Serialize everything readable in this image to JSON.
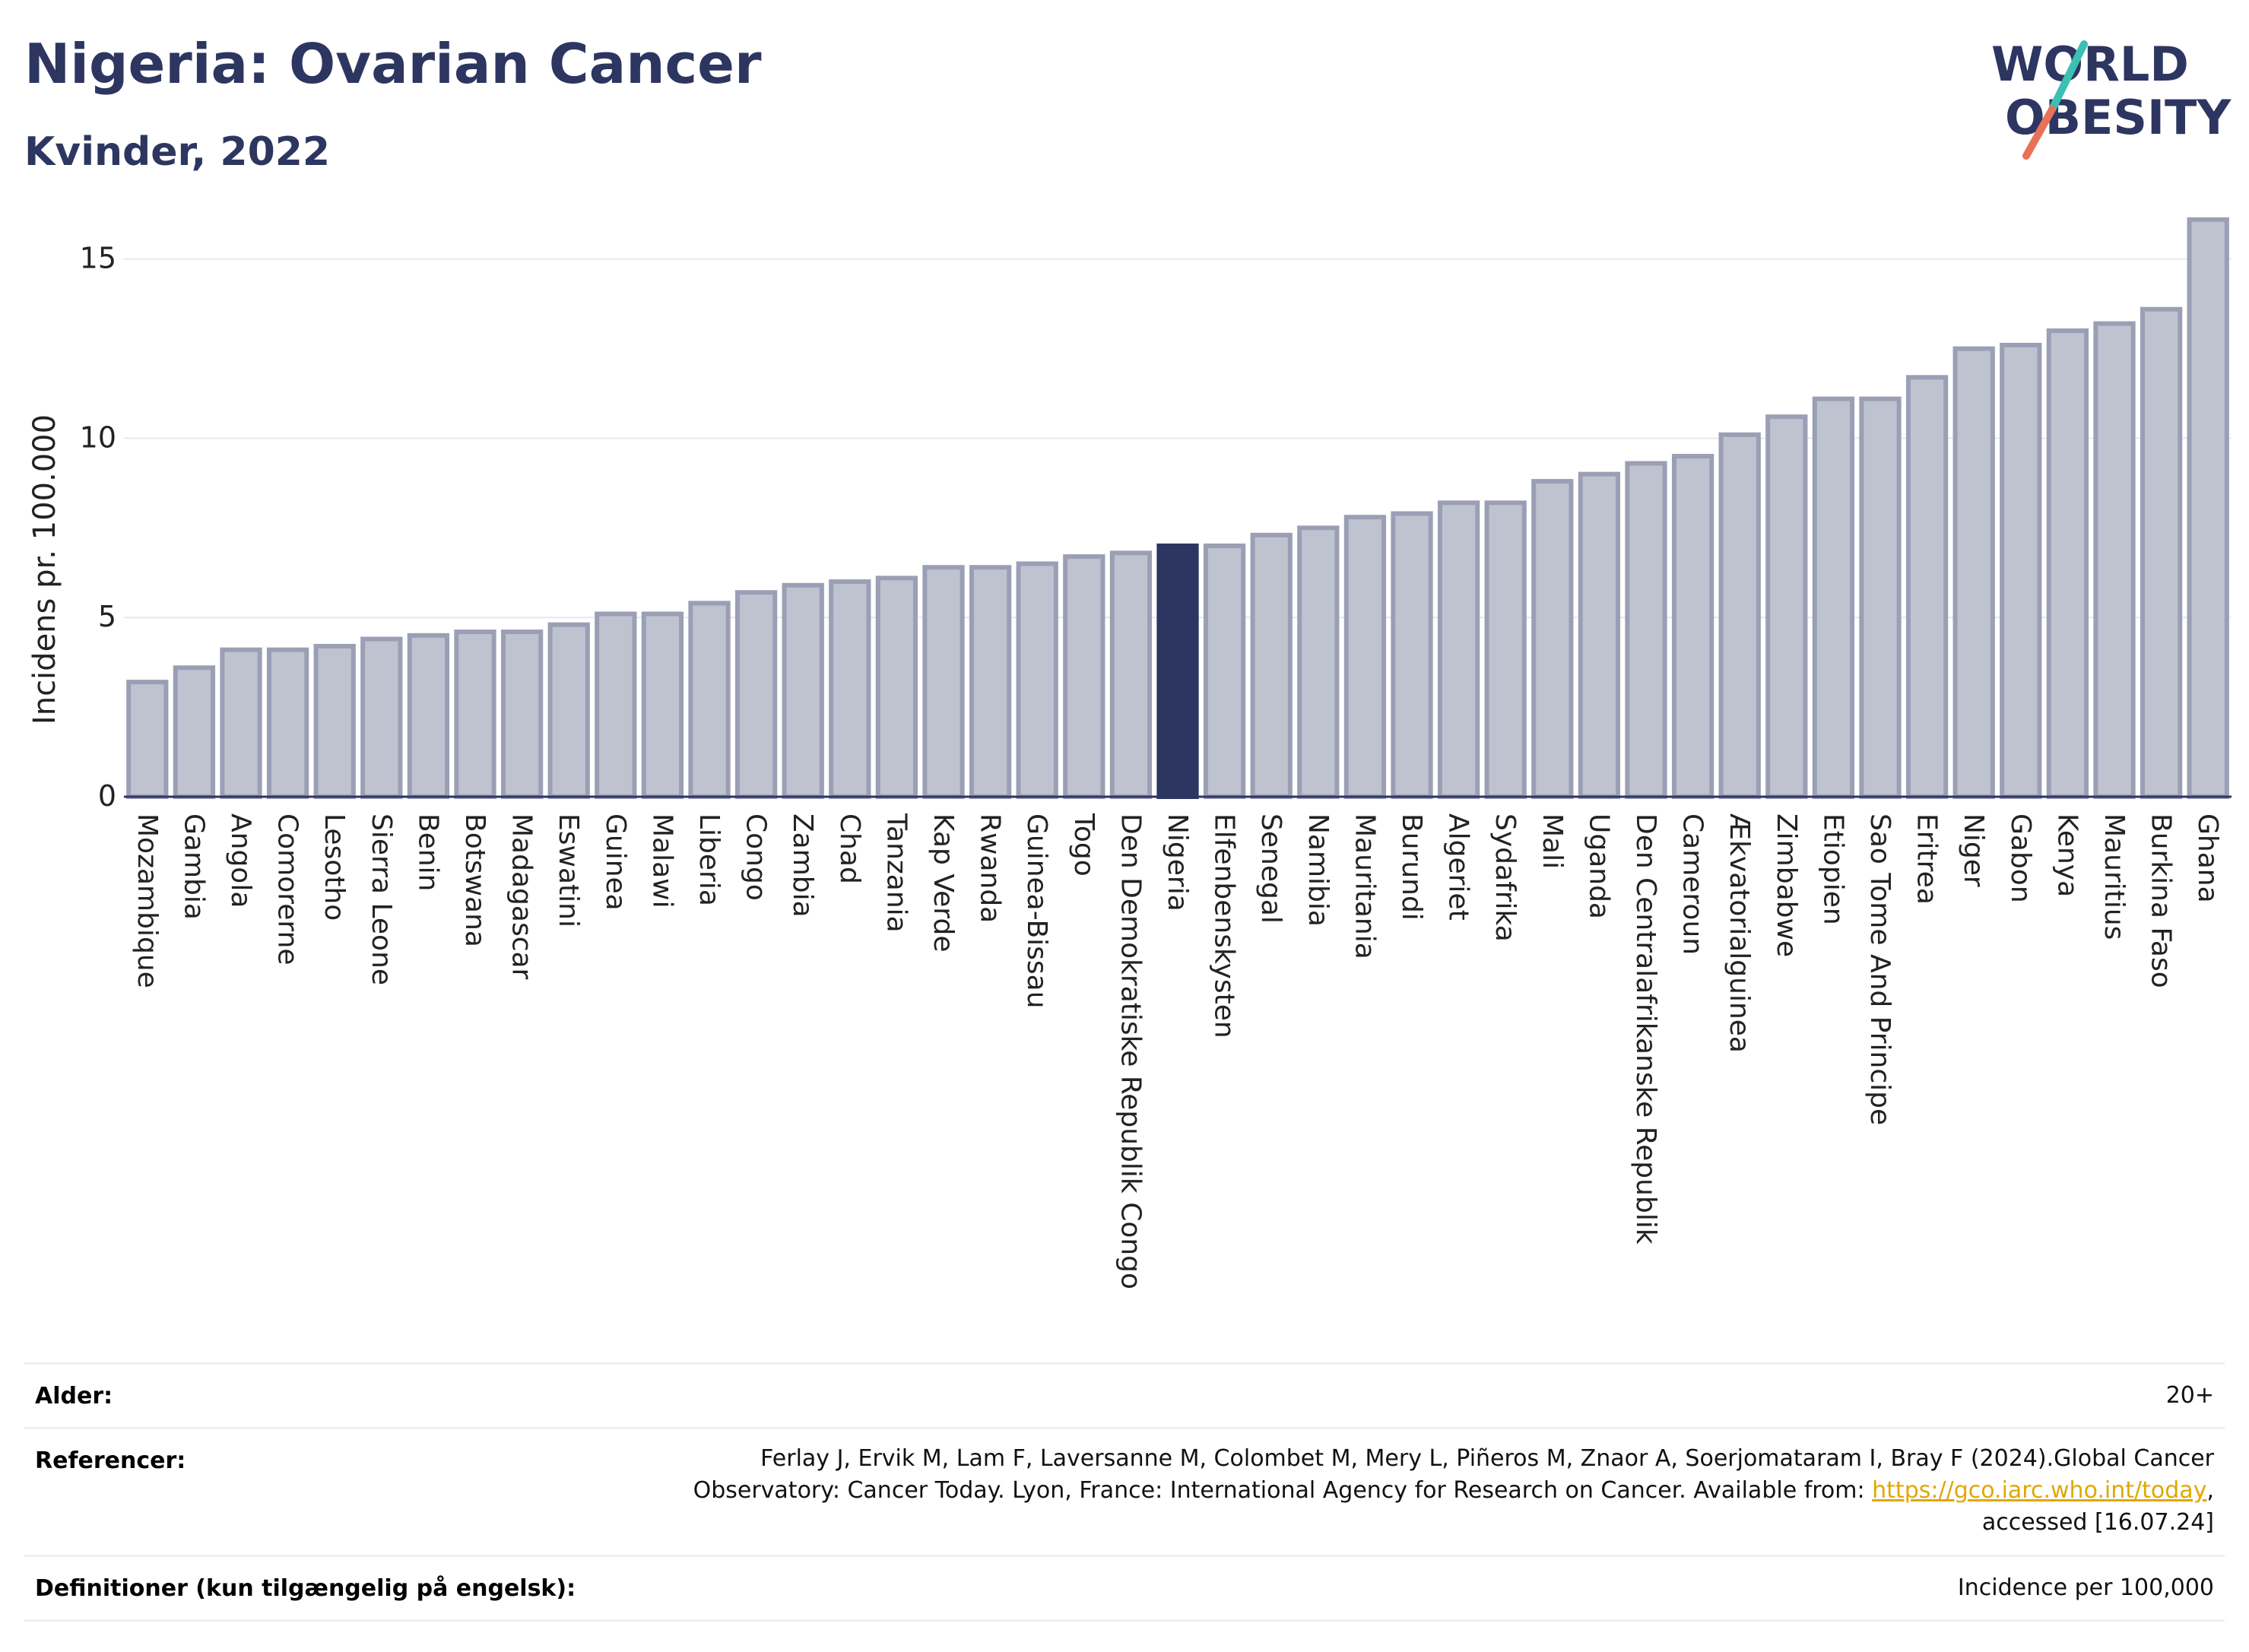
{
  "header": {
    "title": "Nigeria: Ovarian Cancer",
    "subtitle": "Kvinder, 2022",
    "logo_line1": "WORLD",
    "logo_line2": "OBESITY"
  },
  "colors": {
    "bar": "#bfc3d0",
    "bar_stroke": "#9a9fb5",
    "highlight": "#2d3660",
    "text": "#2d3660",
    "grid": "#e6e8ec",
    "link": "#e0a800"
  },
  "chart_data": {
    "type": "bar",
    "title": "Nigeria: Ovarian Cancer",
    "subtitle": "Kvinder, 2022",
    "xlabel": "",
    "ylabel": "Incidens pr. 100.000",
    "ylim": [
      0,
      16.5
    ],
    "yticks": [
      0,
      5,
      10,
      15
    ],
    "grid": true,
    "highlight": "Nigeria",
    "categories": [
      "Mozambique",
      "Gambia",
      "Angola",
      "Comorerne",
      "Lesotho",
      "Sierra Leone",
      "Benin",
      "Botswana",
      "Madagascar",
      "Eswatini",
      "Guinea",
      "Malawi",
      "Liberia",
      "Congo",
      "Zambia",
      "Chad",
      "Tanzania",
      "Kap Verde",
      "Rwanda",
      "Guinea-Bissau",
      "Togo",
      "Den Demokratiske Republik Congo",
      "Nigeria",
      "Elfenbenskysten",
      "Senegal",
      "Namibia",
      "Mauritania",
      "Burundi",
      "Algeriet",
      "Sydafrika",
      "Mali",
      "Uganda",
      "Den Centralafrikanske Republik",
      "Cameroun",
      "Ækvatorialguinea",
      "Zimbabwe",
      "Etiopien",
      "Sao Tome And Principe",
      "Eritrea",
      "Niger",
      "Gabon",
      "Kenya",
      "Mauritius",
      "Burkina Faso",
      "Ghana"
    ],
    "values": [
      3.2,
      3.6,
      4.1,
      4.1,
      4.2,
      4.4,
      4.5,
      4.6,
      4.6,
      4.8,
      5.1,
      5.1,
      5.4,
      5.7,
      5.9,
      6.0,
      6.1,
      6.4,
      6.4,
      6.5,
      6.7,
      6.8,
      7.0,
      7.0,
      7.3,
      7.5,
      7.8,
      7.9,
      8.2,
      8.2,
      8.8,
      9.0,
      9.3,
      9.5,
      10.1,
      10.6,
      11.1,
      11.1,
      11.7,
      12.5,
      12.6,
      13.0,
      13.2,
      13.6,
      16.1
    ]
  },
  "meta": {
    "age_label": "Alder:",
    "age_value": "20+",
    "ref_label": "Referencer:",
    "ref_line1": "Ferlay J, Ervik M, Lam F, Laversanne M, Colombet M, Mery L, Piñeros M, Znaor A, Soerjomataram I, Bray F (2024).Global Cancer",
    "ref_line2": "Observatory: Cancer Today. Lyon, France: International Agency for Research on Cancer. Available from: ",
    "ref_link": "https://gco.iarc.who.int/today",
    "ref_line2_end": ",",
    "ref_line3": "accessed [16.07.24]",
    "def_label": "Definitioner (kun tilgængelig på engelsk):",
    "def_value": "Incidence per 100,000"
  }
}
